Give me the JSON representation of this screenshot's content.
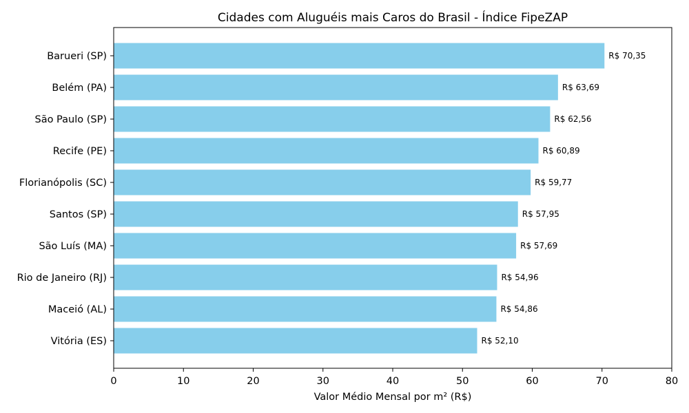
{
  "chart_data": {
    "type": "bar",
    "orientation": "horizontal",
    "title": "Cidades com Aluguéis mais Caros do Brasil - Índice FipeZAP",
    "xlabel": "Valor Médio Mensal por m² (R$)",
    "ylabel": "",
    "xlim": [
      0,
      80
    ],
    "xticks": [
      0,
      10,
      20,
      30,
      40,
      50,
      60,
      70,
      80
    ],
    "grid": false,
    "bar_color": "#87CEEB",
    "categories": [
      "Barueri (SP)",
      "Belém (PA)",
      "São Paulo (SP)",
      "Recife (PE)",
      "Florianópolis (SC)",
      "Santos (SP)",
      "São Luís (MA)",
      "Rio de Janeiro (RJ)",
      "Maceió (AL)",
      "Vitória (ES)"
    ],
    "values": [
      70.35,
      63.69,
      62.56,
      60.89,
      59.77,
      57.95,
      57.69,
      54.96,
      54.86,
      52.1
    ],
    "data_labels": [
      "R$ 70,35",
      "R$ 63,69",
      "R$ 62,56",
      "R$ 60,89",
      "R$ 59,77",
      "R$ 57,95",
      "R$ 57,69",
      "R$ 54,96",
      "R$ 54,86",
      "R$ 52,10"
    ]
  }
}
